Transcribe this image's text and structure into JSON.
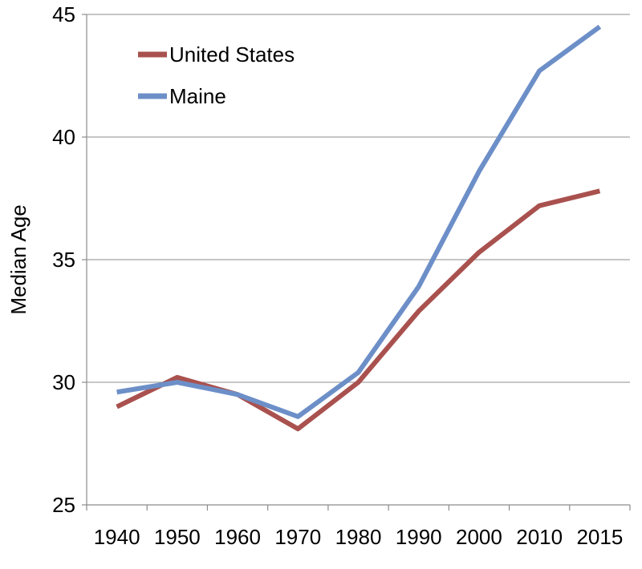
{
  "chart_data": {
    "type": "line",
    "categories": [
      "1940",
      "1950",
      "1960",
      "1970",
      "1980",
      "1990",
      "2000",
      "2010",
      "2015"
    ],
    "series": [
      {
        "name": "United States",
        "color": "#A9514E",
        "values": [
          29.0,
          30.2,
          29.5,
          28.1,
          30.0,
          32.9,
          35.3,
          37.2,
          37.8
        ]
      },
      {
        "name": "Maine",
        "color": "#6D8FC8",
        "values": [
          29.6,
          30.0,
          29.5,
          28.6,
          30.4,
          33.9,
          38.6,
          42.7,
          44.5
        ]
      }
    ],
    "ylabel": "Median Age",
    "xlabel": "",
    "ylim": [
      25,
      45
    ],
    "yticks": [
      "25",
      "30",
      "35",
      "40",
      "45"
    ],
    "grid": "horizontal",
    "legend_position": "top-left"
  }
}
